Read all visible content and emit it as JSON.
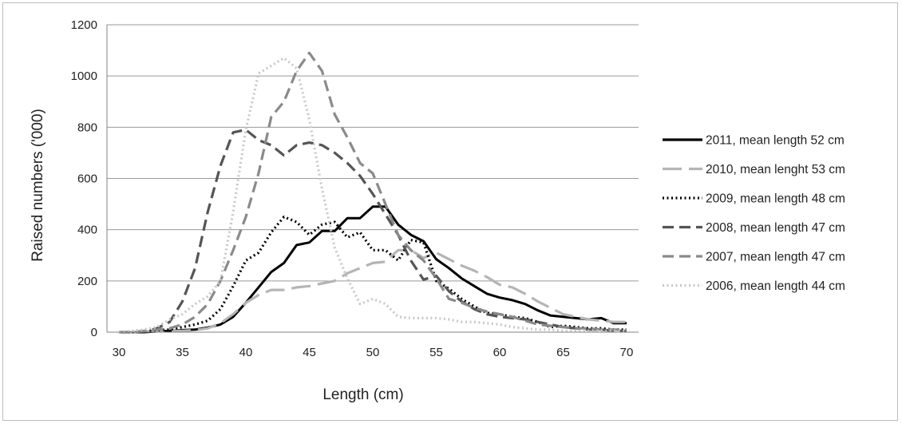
{
  "chart_data": {
    "type": "line",
    "title": "",
    "xlabel": "Length (cm)",
    "ylabel": "Raised numbers ('000)",
    "xlim": [
      30,
      70
    ],
    "ylim": [
      0,
      1200
    ],
    "x_ticks": [
      30,
      35,
      40,
      45,
      50,
      55,
      60,
      65,
      70
    ],
    "y_ticks": [
      0,
      200,
      400,
      600,
      800,
      1000,
      1200
    ],
    "grid": "horizontal",
    "legend_position": "right",
    "x": [
      30,
      31,
      32,
      33,
      34,
      35,
      36,
      37,
      38,
      39,
      40,
      41,
      42,
      43,
      44,
      45,
      46,
      47,
      48,
      49,
      50,
      51,
      52,
      53,
      54,
      55,
      56,
      57,
      58,
      59,
      60,
      61,
      62,
      63,
      64,
      65,
      66,
      67,
      68,
      69,
      70
    ],
    "series": [
      {
        "name": "2011, mean length 52 cm",
        "color": "#000000",
        "dash": "solid",
        "values": [
          0,
          0,
          0,
          3,
          5,
          8,
          10,
          18,
          30,
          60,
          115,
          175,
          235,
          270,
          340,
          350,
          395,
          395,
          445,
          445,
          490,
          490,
          420,
          380,
          355,
          285,
          250,
          210,
          180,
          150,
          135,
          125,
          110,
          85,
          65,
          60,
          55,
          50,
          55,
          35,
          35
        ]
      },
      {
        "name": "2010, mean lenght 53 cm",
        "color": "#b5b5b5",
        "dash": "long-dash",
        "values": [
          0,
          0,
          3,
          5,
          5,
          5,
          8,
          15,
          35,
          70,
          115,
          145,
          165,
          165,
          175,
          180,
          190,
          200,
          230,
          250,
          270,
          275,
          320,
          320,
          290,
          310,
          285,
          260,
          240,
          215,
          185,
          175,
          150,
          120,
          95,
          70,
          60,
          50,
          45,
          40,
          40
        ]
      },
      {
        "name": "2009, mean length 48 cm",
        "color": "#000000",
        "dash": "dotted",
        "values": [
          0,
          0,
          3,
          8,
          10,
          20,
          30,
          45,
          90,
          180,
          280,
          310,
          390,
          450,
          430,
          380,
          420,
          430,
          370,
          390,
          320,
          320,
          280,
          360,
          350,
          200,
          170,
          130,
          100,
          75,
          70,
          60,
          55,
          40,
          20,
          25,
          20,
          15,
          15,
          10,
          10
        ]
      },
      {
        "name": "2008, mean length 47 cm",
        "color": "#555555",
        "dash": "dash",
        "values": [
          0,
          0,
          3,
          15,
          40,
          120,
          250,
          470,
          650,
          780,
          790,
          750,
          730,
          690,
          730,
          740,
          730,
          700,
          660,
          610,
          540,
          460,
          380,
          280,
          205,
          220,
          160,
          120,
          90,
          70,
          60,
          55,
          50,
          40,
          30,
          20,
          15,
          10,
          10,
          5,
          5
        ]
      },
      {
        "name": "2007, mean length 47 cm",
        "color": "#8a8a8a",
        "dash": "dash",
        "values": [
          0,
          0,
          5,
          10,
          15,
          30,
          60,
          110,
          200,
          320,
          450,
          620,
          840,
          900,
          1020,
          1090,
          1020,
          850,
          760,
          660,
          620,
          500,
          380,
          320,
          280,
          210,
          130,
          115,
          95,
          80,
          70,
          60,
          45,
          30,
          25,
          20,
          15,
          15,
          10,
          10,
          10
        ]
      },
      {
        "name": "2006, mean length 44 cm",
        "color": "#c8c8c8",
        "dash": "dotted",
        "values": [
          0,
          5,
          10,
          20,
          50,
          70,
          110,
          140,
          200,
          470,
          790,
          1010,
          1040,
          1070,
          1030,
          830,
          560,
          330,
          210,
          110,
          130,
          110,
          60,
          55,
          55,
          55,
          50,
          40,
          40,
          35,
          30,
          20,
          15,
          10,
          10,
          5,
          5,
          5,
          5,
          5,
          5
        ]
      }
    ]
  }
}
